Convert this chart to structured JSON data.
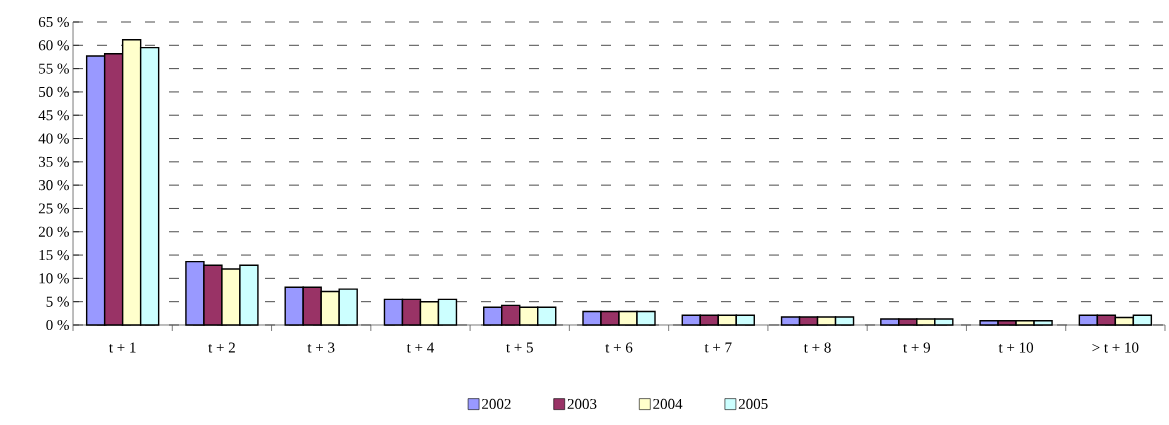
{
  "chart_data": {
    "type": "bar",
    "categories": [
      "t + 1",
      "t + 2",
      "t + 3",
      "t + 4",
      "t + 5",
      "t + 6",
      "t + 7",
      "t + 8",
      "t + 9",
      "t + 10",
      "> t + 10"
    ],
    "series": [
      {
        "name": "2002",
        "color": "#9999ff",
        "values": [
          57.7,
          13.6,
          8.1,
          5.5,
          3.8,
          2.9,
          2.1,
          1.7,
          1.3,
          0.9,
          2.1
        ]
      },
      {
        "name": "2003",
        "color": "#993366",
        "values": [
          58.2,
          12.8,
          8.1,
          5.5,
          4.2,
          2.9,
          2.1,
          1.7,
          1.3,
          0.9,
          2.1
        ]
      },
      {
        "name": "2004",
        "color": "#ffffcc",
        "values": [
          61.2,
          12.0,
          7.2,
          5.0,
          3.8,
          2.9,
          2.1,
          1.7,
          1.3,
          0.9,
          1.6
        ]
      },
      {
        "name": "2005",
        "color": "#ccffff",
        "values": [
          59.5,
          12.8,
          7.7,
          5.5,
          3.8,
          2.9,
          2.1,
          1.7,
          1.3,
          0.9,
          2.1
        ]
      }
    ],
    "ylim": [
      0,
      65
    ],
    "yticks": [
      {
        "value": 0,
        "label": "0 %"
      },
      {
        "value": 5,
        "label": "5 %"
      },
      {
        "value": 10,
        "label": "10 %"
      },
      {
        "value": 15,
        "label": "15 %"
      },
      {
        "value": 20,
        "label": "20 %"
      },
      {
        "value": 25,
        "label": "25 %"
      },
      {
        "value": 30,
        "label": "30 %"
      },
      {
        "value": 35,
        "label": "35 %"
      },
      {
        "value": 40,
        "label": "40 %"
      },
      {
        "value": 45,
        "label": "45 %"
      },
      {
        "value": 50,
        "label": "50 %"
      },
      {
        "value": 55,
        "label": "55 %"
      },
      {
        "value": 60,
        "label": "60 %"
      },
      {
        "value": 65,
        "label": "65 %"
      }
    ],
    "grid": "y",
    "legend": "bottom"
  }
}
